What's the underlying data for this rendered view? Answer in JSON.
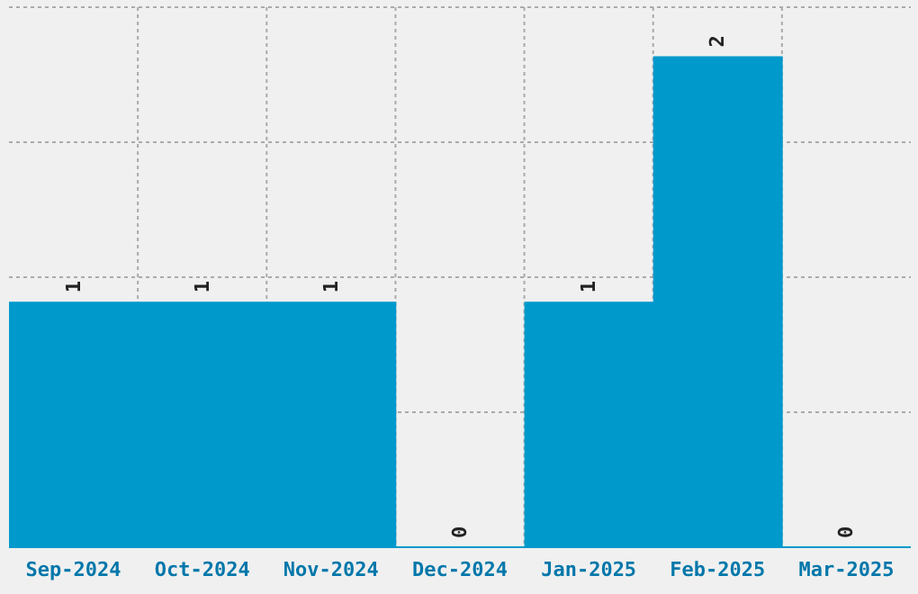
{
  "chart_data": {
    "type": "bar",
    "categories": [
      "Sep-2024",
      "Oct-2024",
      "Nov-2024",
      "Dec-2024",
      "Jan-2025",
      "Feb-2025",
      "Mar-2025"
    ],
    "values": [
      1,
      1,
      1,
      0,
      1,
      2,
      0
    ],
    "color": "#0099cc",
    "ylim": [
      0,
      2.2
    ],
    "grid": true,
    "tick_labels": "x",
    "data_labels": true
  }
}
